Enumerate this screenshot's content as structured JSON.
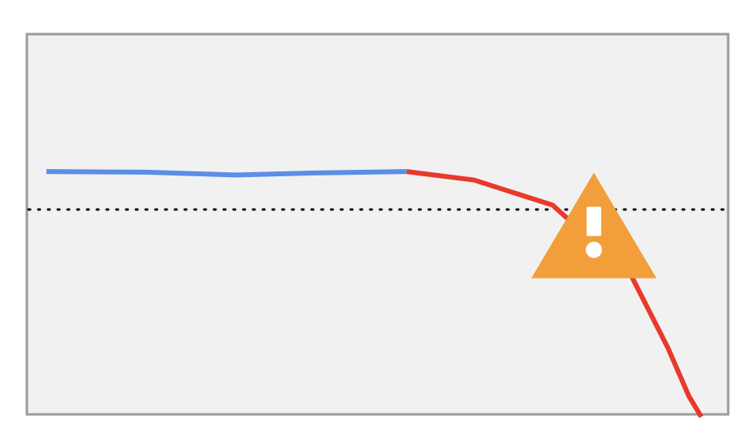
{
  "chart_data": {
    "type": "line",
    "title": "",
    "xlabel": "",
    "ylabel": "",
    "grid": false,
    "legend": "none",
    "xlim": [
      0,
      100
    ],
    "ylim": [
      0,
      100
    ],
    "series": [
      {
        "role": "historical",
        "color": "#5b8ee6",
        "x": [
          0,
          15,
          29,
          42,
          55
        ],
        "y": [
          72.5,
          72.3,
          71.4,
          72.1,
          72.5
        ]
      },
      {
        "role": "projected",
        "color": "#e83a2c",
        "x": [
          55,
          65.3,
          77.3,
          89.4,
          94.9,
          98.1,
          100
        ],
        "y": [
          72.5,
          69.8,
          61.8,
          38.9,
          16.3,
          0.9,
          -5.7
        ]
      }
    ],
    "threshold": {
      "y": 60.4,
      "style": "dotted",
      "color": "#111111"
    },
    "annotation": {
      "icon": "warning-triangle-icon",
      "color": "#f29f3b",
      "glyph_color": "#ffffff",
      "anchor_x": 83.6,
      "anchor_y": 55.3
    }
  }
}
